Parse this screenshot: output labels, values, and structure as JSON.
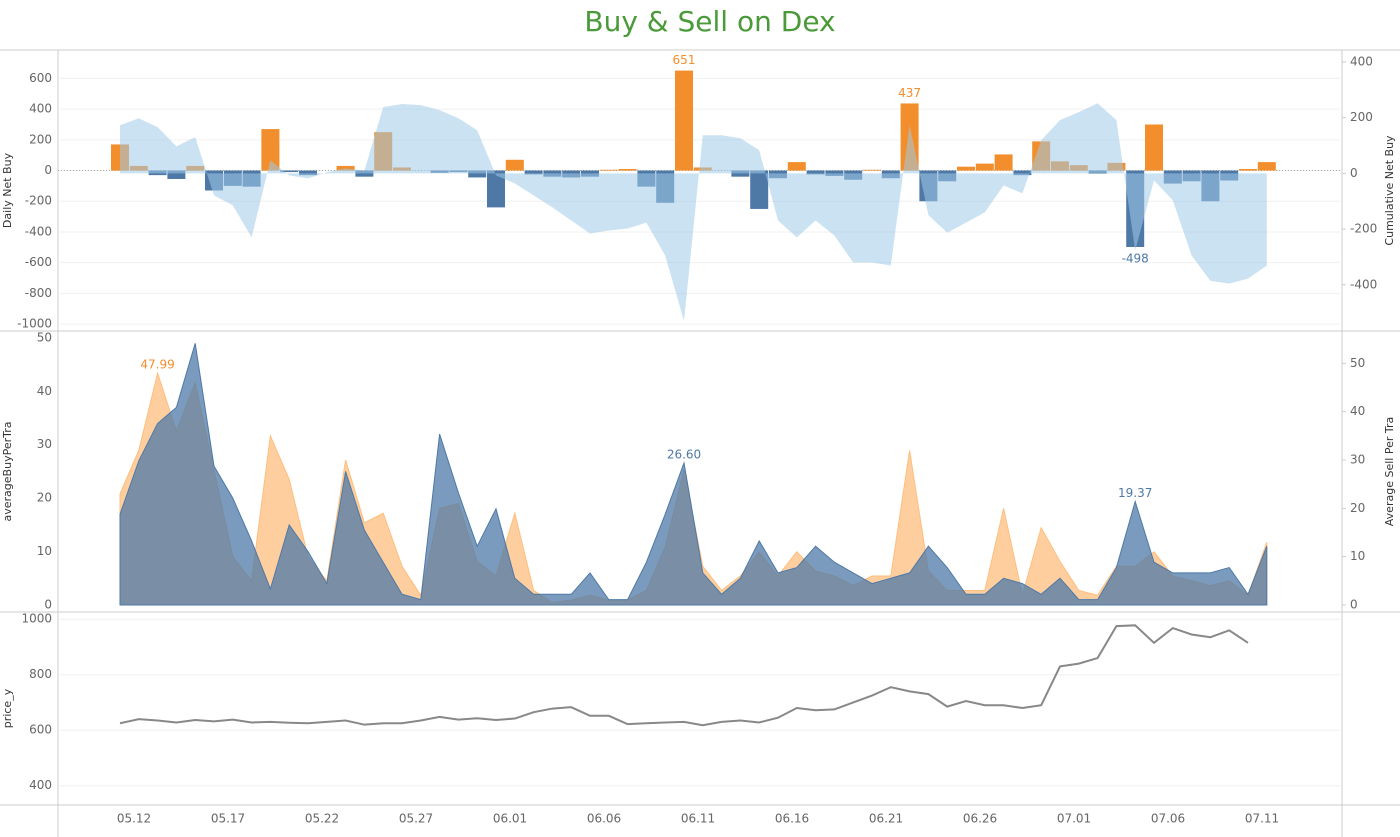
{
  "title": "Buy & Sell on Dex",
  "chart_data": [
    {
      "type": "bar",
      "ylabel": "Daily Net Buy",
      "y2label": "Cumulative Net Buy",
      "ylim": [
        -1045,
        785
      ],
      "yticks": [
        600,
        400,
        200,
        0,
        -200,
        -400,
        -600,
        -800,
        -1000
      ],
      "y2lim": [
        -566,
        443
      ],
      "y2ticks": [
        400,
        200,
        0,
        -200,
        -400
      ],
      "grid": true,
      "series": [
        {
          "positive_color": "#f28e2b",
          "negative_color": "#4e79a7",
          "values": [
            170,
            30,
            -30,
            -55,
            30,
            -130,
            -100,
            -105,
            270,
            -10,
            -30,
            0,
            30,
            -40,
            250,
            20,
            0,
            -15,
            -10,
            -45,
            -240,
            70,
            -25,
            -40,
            -45,
            -40,
            5,
            10,
            -105,
            -210,
            651,
            20,
            0,
            -40,
            -250,
            -50,
            55,
            -25,
            -35,
            -60,
            5,
            -50,
            437,
            -200,
            -70,
            25,
            45,
            105,
            -30,
            190,
            60,
            35,
            -20,
            50,
            -498,
            300,
            -85,
            -70,
            -200,
            -65,
            10,
            55
          ],
          "labeled": [
            30,
            42,
            54
          ]
        },
        {
          "type": "area",
          "axis": "y2",
          "color": "#a0cbe8",
          "values": [
            173,
            198,
            166,
            97,
            130,
            -79,
            -115,
            -230,
            47,
            -7,
            -18,
            4,
            18,
            10,
            238,
            249,
            245,
            227,
            198,
            155,
            -7,
            -36,
            -79,
            -122,
            -169,
            -216,
            -205,
            -198,
            -177,
            -295,
            -530,
            137,
            137,
            126,
            83,
            -169,
            -230,
            -169,
            -223,
            -320,
            -320,
            -331,
            173,
            -150,
            -213,
            -177,
            -140,
            -43,
            -72,
            119,
            191,
            220,
            252,
            191,
            -277,
            -25,
            -97,
            -295,
            -386,
            -396,
            -378,
            -331
          ]
        }
      ]
    },
    {
      "type": "area",
      "ylabel": "averageBuyPerTra",
      "y2label": "Average Sell Per Tra",
      "ylim": [
        -1.32,
        51.3
      ],
      "yticks": [
        0,
        10,
        20,
        30,
        40,
        50
      ],
      "y2lim": [
        -1.46,
        56.7
      ],
      "y2ticks": [
        0,
        10,
        20,
        30,
        40,
        50
      ],
      "series": [
        {
          "axis": "y2",
          "color": "#ffbe7d",
          "label_color": "#f28e2b",
          "values": [
            23,
            32,
            47.99,
            36,
            46,
            28,
            10,
            5,
            35,
            26,
            10,
            5,
            30,
            17,
            19,
            8,
            2,
            20,
            21,
            9,
            6,
            19,
            3,
            0.5,
            1,
            2,
            1,
            1,
            3,
            12,
            28,
            8,
            3,
            6,
            11,
            6,
            11,
            7,
            6,
            4,
            6,
            6,
            32,
            7,
            3,
            3,
            3,
            20,
            2,
            16,
            9,
            3,
            2,
            8,
            8,
            11,
            6,
            5,
            4,
            5,
            2,
            13
          ],
          "value_labels": [
            null,
            null,
            "47.99",
            null,
            null,
            null,
            null,
            null,
            null,
            null,
            null,
            null,
            null,
            null,
            null,
            null,
            null,
            null,
            null,
            null,
            null,
            null,
            null,
            null,
            null,
            null,
            null,
            null,
            null,
            null,
            null,
            null,
            null,
            null,
            null,
            null,
            null,
            null,
            null,
            null,
            null,
            null,
            null,
            null,
            null,
            null,
            null,
            null,
            null,
            null,
            null,
            null,
            null,
            null,
            null,
            null,
            null,
            null,
            null,
            null,
            null,
            null
          ]
        },
        {
          "axis": "y",
          "color": "#4e79a7",
          "label_color": "#4e79a7",
          "values": [
            17,
            27,
            34,
            37,
            49,
            26,
            20,
            12,
            3,
            15,
            10,
            4,
            25,
            14,
            8,
            2,
            1,
            32,
            21,
            11,
            18,
            5,
            2,
            2,
            2,
            6,
            1,
            1,
            8,
            17,
            26.6,
            6,
            2,
            5,
            12,
            6,
            7,
            11,
            8,
            6,
            4,
            5,
            6,
            11,
            7,
            2,
            2,
            5,
            4,
            2,
            5,
            1,
            1,
            7,
            19.37,
            8,
            6,
            6,
            6,
            7,
            2,
            11
          ],
          "value_labels": [
            null,
            null,
            null,
            null,
            null,
            null,
            null,
            null,
            null,
            null,
            null,
            null,
            null,
            null,
            null,
            null,
            null,
            null,
            null,
            null,
            null,
            null,
            null,
            null,
            null,
            null,
            null,
            null,
            null,
            null,
            "26.60",
            null,
            null,
            null,
            null,
            null,
            null,
            null,
            null,
            null,
            null,
            null,
            null,
            null,
            null,
            null,
            null,
            null,
            null,
            null,
            null,
            null,
            null,
            null,
            "19.37",
            null,
            null,
            null,
            null,
            null,
            null,
            null
          ]
        }
      ]
    },
    {
      "type": "line",
      "ylabel": "price_y",
      "ylim": [
        330.5,
        1026
      ],
      "yticks": [
        400,
        600,
        800,
        1000
      ],
      "grid": true,
      "color": "#888888",
      "values": [
        625,
        640,
        635,
        628,
        637,
        632,
        638,
        628,
        630,
        627,
        625,
        630,
        635,
        620,
        625,
        625,
        635,
        648,
        638,
        643,
        637,
        642,
        665,
        678,
        683,
        652,
        652,
        622,
        625,
        628,
        630,
        618,
        630,
        635,
        628,
        645,
        680,
        672,
        675,
        700,
        725,
        755,
        740,
        730,
        685,
        705,
        690,
        690,
        680,
        690,
        830,
        840,
        860,
        975,
        978,
        915,
        968,
        945,
        935,
        960,
        915,
        null
      ],
      "categories": [
        "05.12",
        null,
        null,
        null,
        null,
        "05.17",
        null,
        null,
        null,
        null,
        "05.22",
        null,
        null,
        null,
        null,
        "05.27",
        null,
        null,
        null,
        null,
        "06.01",
        null,
        null,
        null,
        null,
        "06.06",
        null,
        null,
        null,
        null,
        "06.11",
        null,
        null,
        null,
        null,
        "06.16",
        null,
        null,
        null,
        null,
        "06.21",
        null,
        null,
        null,
        null,
        "06.26",
        null,
        null,
        null,
        null,
        "07.01",
        null,
        null,
        null,
        null,
        "07.06",
        null,
        null,
        null,
        null,
        "07.11",
        null
      ]
    }
  ]
}
